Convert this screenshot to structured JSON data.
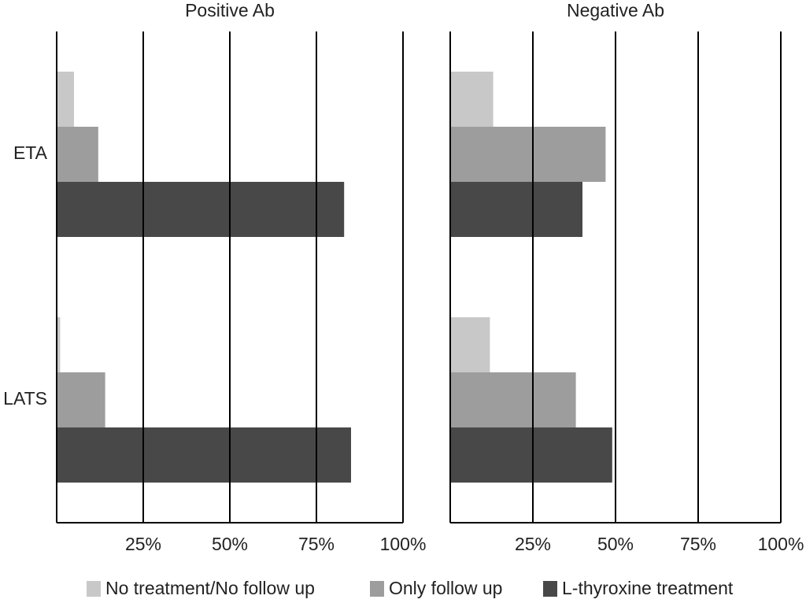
{
  "chart_data": [
    {
      "type": "hbar",
      "title": "Positive Ab",
      "categories": [
        "ETA",
        "LATS"
      ],
      "series": [
        {
          "name": "No treatment/No follow up",
          "color": "#c8c8c8",
          "values": [
            5,
            1
          ]
        },
        {
          "name": "Only follow up",
          "color": "#9d9d9d",
          "values": [
            12,
            14
          ]
        },
        {
          "name": "L-thyroxine treatment",
          "color": "#484848",
          "values": [
            83,
            85
          ]
        }
      ],
      "xlim": [
        0,
        100
      ],
      "xticks": [
        {
          "value": 25,
          "label": "25%"
        },
        {
          "value": 50,
          "label": "50%"
        },
        {
          "value": 75,
          "label": "75%"
        },
        {
          "value": 100,
          "label": "100%"
        }
      ],
      "grid": true
    },
    {
      "type": "hbar",
      "title": "Negative Ab",
      "series": [
        {
          "color": "#c8c8c8",
          "values": [
            13,
            12
          ]
        },
        {
          "color": "#9d9d9d",
          "values": [
            47,
            38
          ]
        },
        {
          "color": "#484848",
          "values": [
            40,
            49
          ]
        }
      ],
      "xlim": [
        0,
        100
      ],
      "xticks": [
        {
          "value": 25,
          "label": "25%"
        },
        {
          "value": 50,
          "label": "50%"
        },
        {
          "value": 75,
          "label": "75%"
        },
        {
          "value": 100,
          "label": "100%"
        }
      ],
      "grid": true
    }
  ]
}
